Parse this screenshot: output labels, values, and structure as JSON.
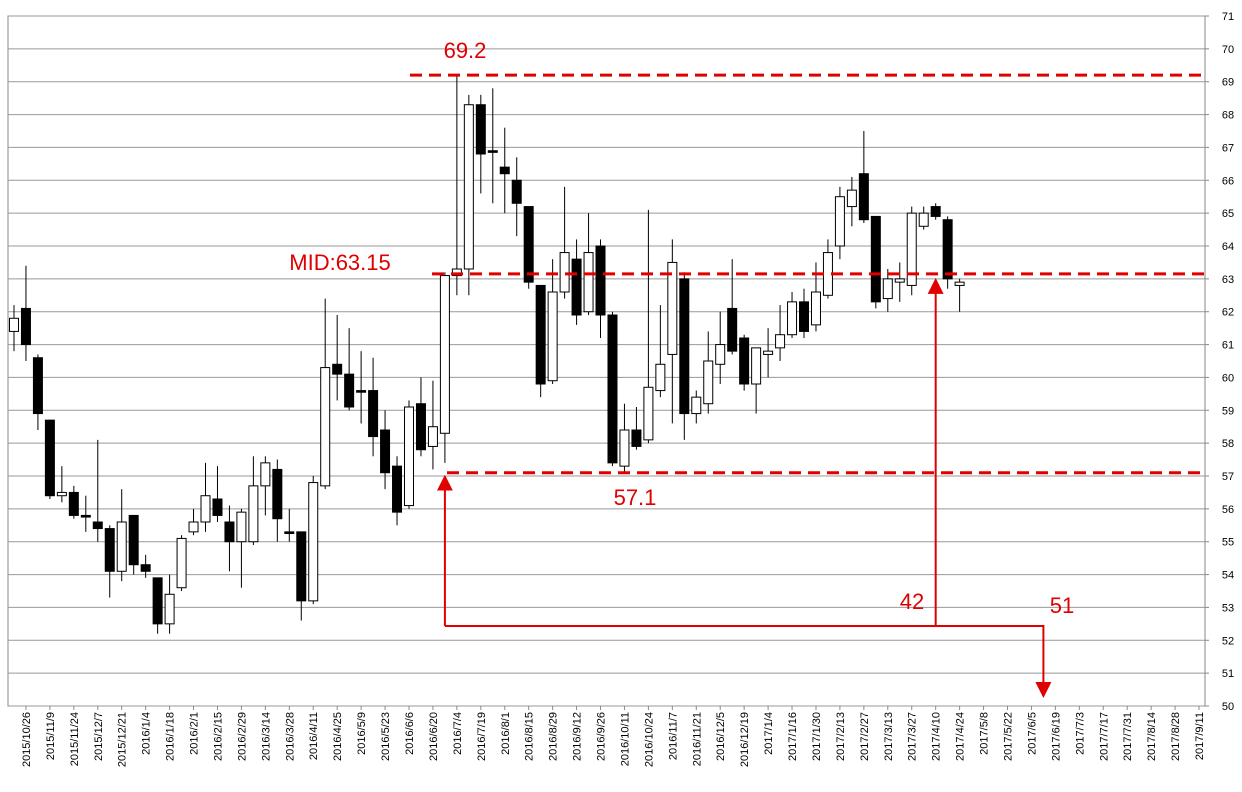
{
  "chart_data": {
    "type": "candlestick",
    "categories": [
      null,
      "2015/10/26",
      null,
      "2015/11/9",
      null,
      "2015/11/24",
      null,
      "2015/12/7",
      null,
      "2015/12/21",
      null,
      "2016/1/4",
      null,
      "2016/1/18",
      null,
      "2016/2/1",
      null,
      "2016/2/15",
      null,
      "2016/2/29",
      null,
      "2016/3/14",
      null,
      "2016/3/28",
      null,
      "2016/4/11",
      null,
      "2016/4/25",
      null,
      "2016/5/9",
      null,
      "2016/5/23",
      null,
      "2016/6/6",
      null,
      "2016/6/20",
      null,
      "2016/7/4",
      null,
      "2016/7/19",
      null,
      "2016/8/1",
      null,
      "2016/8/15",
      null,
      "2016/8/29",
      null,
      "2016/9/12",
      null,
      "2016/9/26",
      null,
      "2016/10/11",
      null,
      "2016/10/24",
      null,
      "2016/11/7",
      null,
      "2016/11/21",
      null,
      "2016/12/5",
      null,
      "2016/12/19",
      null,
      "2017/1/4",
      null,
      "2017/1/16",
      null,
      "2017/1/30",
      null,
      "2017/2/13",
      null,
      "2017/2/27",
      null,
      "2017/3/13",
      null,
      "2017/3/27",
      null,
      "2017/4/10",
      null,
      "2017/4/24",
      null,
      "2017/5/8",
      null,
      "2017/5/22",
      null,
      "2017/6/5",
      null,
      "2017/6/19",
      null,
      "2017/7/3",
      null,
      "2017/7/17",
      null,
      "2017/7/31",
      null,
      "2017/8/14",
      null,
      "2017/8/28",
      null,
      "2017/9/11"
    ],
    "open": [
      61.4,
      62.1,
      60.6,
      58.7,
      56.4,
      56.5,
      55.8,
      55.6,
      55.4,
      54.1,
      55.8,
      54.3,
      53.9,
      52.5,
      53.6,
      55.3,
      55.6,
      56.3,
      55.6,
      55.0,
      55.0,
      56.7,
      57.2,
      55.3,
      55.3,
      53.2,
      56.7,
      60.4,
      60.1,
      59.6,
      59.6,
      58.4,
      57.3,
      56.1,
      59.2,
      57.9,
      58.3,
      63.1,
      63.3,
      68.3,
      66.9,
      66.4,
      66.0,
      65.2,
      62.8,
      59.9,
      62.6,
      63.6,
      62.0,
      64.0,
      61.9,
      57.3,
      58.4,
      58.1,
      59.6,
      60.7,
      63.0,
      58.9,
      59.2,
      60.4,
      62.1,
      61.2,
      59.8,
      60.7,
      60.9,
      61.3,
      62.3,
      61.6,
      62.5,
      64.0,
      65.2,
      66.2,
      64.9,
      62.4,
      62.9,
      62.8,
      64.6,
      65.2,
      64.8,
      62.8,
      null,
      null,
      null,
      null,
      null,
      null,
      null,
      null,
      null,
      null,
      null,
      null,
      null,
      null,
      null,
      null,
      null,
      null,
      null,
      null
    ],
    "high": [
      62.2,
      63.4,
      60.7,
      58.7,
      57.3,
      56.7,
      56.4,
      58.1,
      55.5,
      56.6,
      55.8,
      54.6,
      53.9,
      54.0,
      55.2,
      56.0,
      57.4,
      57.3,
      56.1,
      56.0,
      57.6,
      57.6,
      57.5,
      56.0,
      55.3,
      57.0,
      62.4,
      61.9,
      61.5,
      60.8,
      60.6,
      59.0,
      57.6,
      59.3,
      60.0,
      59.9,
      63.2,
      69.2,
      68.6,
      68.6,
      68.8,
      67.6,
      66.7,
      65.2,
      62.8,
      63.6,
      65.8,
      64.2,
      65.0,
      64.2,
      62.0,
      59.2,
      59.1,
      65.1,
      62.2,
      64.2,
      63.2,
      59.6,
      61.4,
      62.0,
      63.6,
      61.3,
      60.9,
      61.5,
      62.2,
      62.6,
      62.7,
      63.5,
      64.2,
      65.8,
      66.1,
      67.5,
      64.9,
      63.3,
      63.5,
      65.2,
      65.2,
      65.3,
      64.9,
      63.0,
      null,
      null,
      null,
      null,
      null,
      null,
      null,
      null,
      null,
      null,
      null,
      null,
      null,
      null,
      null,
      null,
      null,
      null,
      null,
      null
    ],
    "low": [
      60.8,
      60.5,
      58.4,
      56.3,
      56.2,
      55.7,
      55.3,
      55.0,
      53.3,
      53.8,
      54.0,
      53.9,
      52.2,
      52.2,
      53.5,
      55.2,
      55.3,
      55.6,
      54.1,
      53.6,
      54.9,
      55.8,
      55.0,
      55.0,
      52.6,
      53.1,
      56.6,
      59.3,
      59.0,
      58.6,
      57.6,
      56.6,
      55.5,
      56.0,
      57.6,
      57.2,
      57.4,
      62.5,
      62.5,
      65.6,
      65.3,
      65.0,
      64.3,
      62.7,
      59.4,
      59.8,
      62.4,
      61.6,
      61.9,
      61.2,
      57.3,
      57.1,
      57.8,
      58.0,
      59.4,
      58.6,
      58.1,
      58.6,
      58.9,
      59.8,
      60.7,
      59.6,
      58.9,
      60.0,
      60.5,
      61.2,
      61.2,
      61.4,
      62.4,
      63.6,
      64.6,
      64.7,
      62.1,
      62.0,
      62.3,
      62.5,
      64.5,
      64.8,
      62.7,
      62.0,
      null,
      null,
      null,
      null,
      null,
      null,
      null,
      null,
      null,
      null,
      null,
      null,
      null,
      null,
      null,
      null,
      null,
      null,
      null,
      null
    ],
    "close": [
      61.8,
      61.0,
      58.9,
      56.4,
      56.5,
      55.8,
      55.75,
      55.4,
      54.1,
      55.6,
      54.3,
      54.1,
      52.5,
      53.4,
      55.1,
      55.6,
      56.4,
      55.8,
      55.0,
      55.9,
      56.7,
      57.4,
      55.7,
      55.25,
      53.2,
      56.8,
      60.3,
      60.1,
      59.1,
      59.55,
      58.2,
      57.1,
      55.9,
      59.1,
      57.8,
      58.5,
      63.1,
      63.3,
      68.3,
      66.8,
      66.85,
      66.2,
      65.3,
      62.9,
      59.8,
      62.6,
      63.8,
      61.9,
      63.8,
      61.9,
      57.4,
      58.4,
      57.9,
      59.7,
      60.4,
      63.5,
      58.9,
      59.4,
      60.5,
      61.0,
      60.8,
      59.8,
      60.9,
      60.8,
      61.3,
      62.3,
      61.4,
      62.6,
      63.8,
      65.5,
      65.7,
      64.8,
      62.3,
      63.0,
      63.0,
      65.0,
      65.0,
      64.9,
      63.0,
      62.9,
      null,
      null,
      null,
      null,
      null,
      null,
      null,
      null,
      null,
      null,
      null,
      null,
      null,
      null,
      null,
      null,
      null,
      null,
      null,
      null
    ],
    "up_color": "#ffffff",
    "down_color": "#000000",
    "line_color": "#e00000",
    "ylim": [
      50,
      71
    ],
    "yticks": [
      50,
      51,
      52,
      53,
      54,
      55,
      56,
      57,
      58,
      59,
      60,
      61,
      62,
      63,
      64,
      65,
      66,
      67,
      68,
      69,
      70,
      71
    ],
    "grid": true,
    "levels": [
      {
        "value": 69.2,
        "label": "69.2"
      },
      {
        "value": 63.15,
        "label": "MID:63.15"
      },
      {
        "value": 57.1,
        "label": "57.1"
      }
    ],
    "annotations": [
      "42",
      "51"
    ]
  }
}
